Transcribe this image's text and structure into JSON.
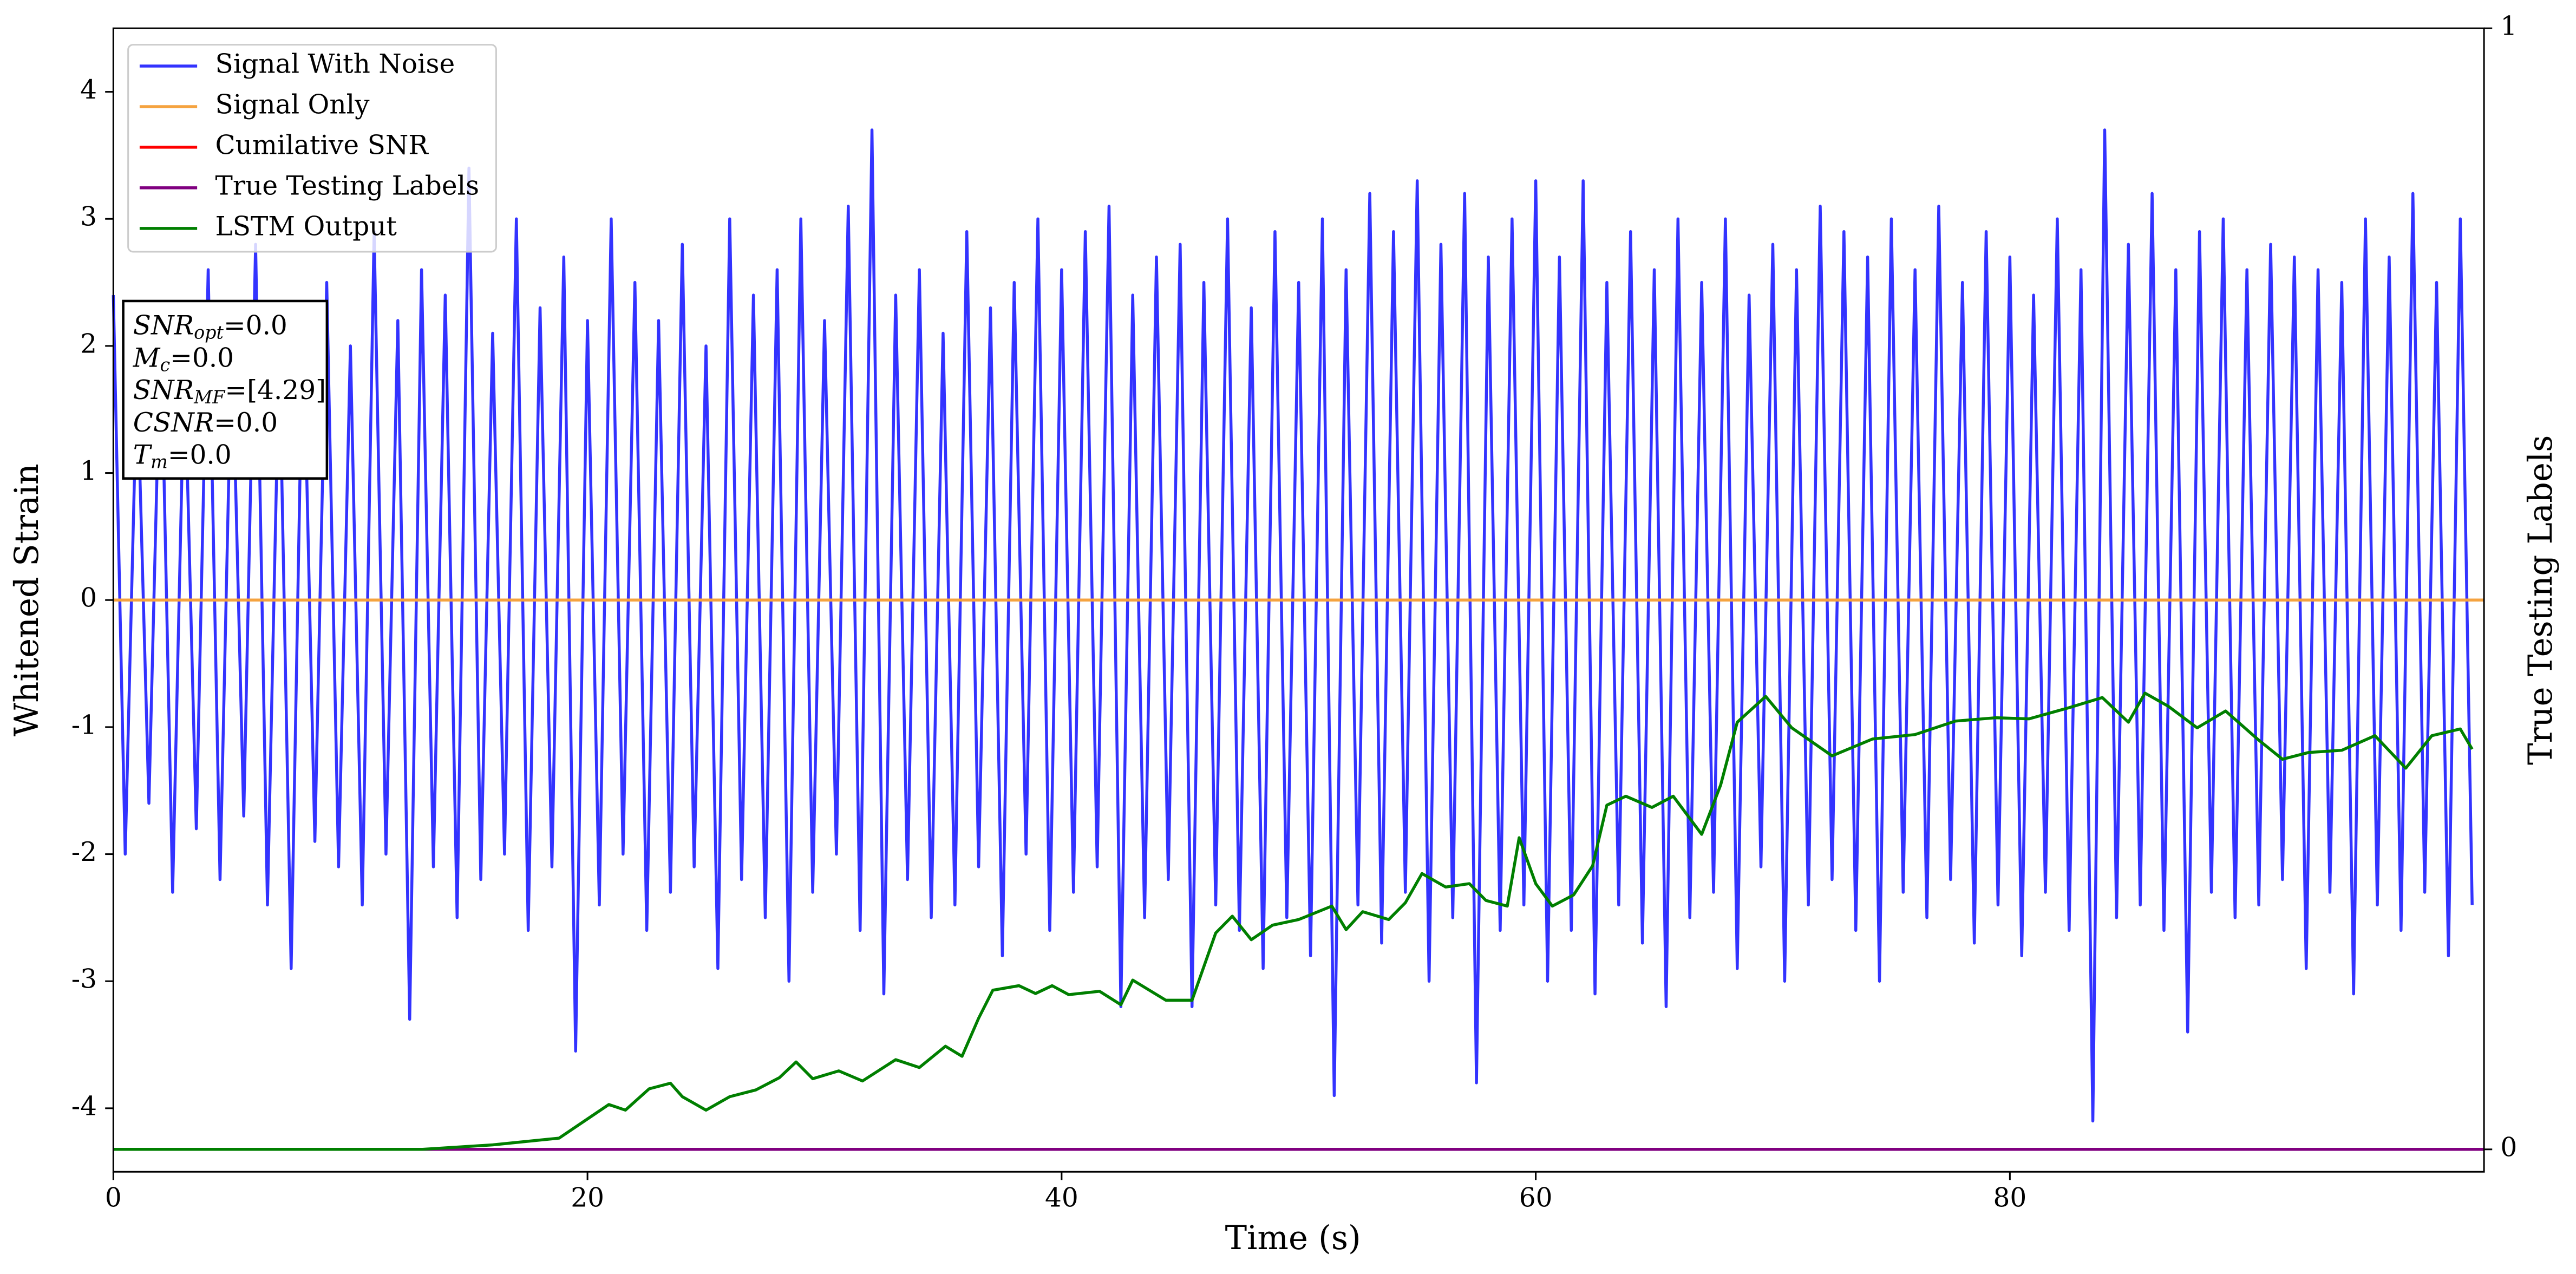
{
  "chart_data": {
    "type": "line",
    "xlabel": "Time (s)",
    "ylabel": "Whitened Strain",
    "y2label": "True Testing Labels",
    "xlim": [
      0,
      100
    ],
    "xticks": [
      0,
      20,
      40,
      60,
      80
    ],
    "ylim": [
      -4.5,
      4.5
    ],
    "yticks": [
      -4,
      -3,
      -2,
      -1,
      0,
      1,
      2,
      3,
      4
    ],
    "y2lim": [
      -0.02,
      1
    ],
    "y2ticks": [
      0,
      1
    ],
    "legend": "upper left",
    "annotation": [
      {
        "main": "SNR",
        "sub": "opt",
        "rest": "=0.0"
      },
      {
        "main": "M",
        "sub": "c",
        "rest": "=0.0"
      },
      {
        "main": "SNR",
        "sub": "MF",
        "rest": "=[4.29]"
      },
      {
        "main": "CSNR",
        "rest": "=0.0"
      },
      {
        "main": "T",
        "sub": "m",
        "rest": "=0.0"
      }
    ],
    "series": [
      {
        "name": "Signal With Noise",
        "color": "#3333ff",
        "x": [
          0,
          0.5,
          1,
          1.5,
          2,
          2.5,
          3,
          3.5,
          4,
          4.5,
          5,
          5.5,
          6,
          6.5,
          7,
          7.5,
          8,
          8.5,
          9,
          9.5,
          10,
          10.5,
          11,
          11.5,
          12,
          12.5,
          13,
          13.5,
          14,
          14.5,
          15,
          15.5,
          16,
          16.5,
          17,
          17.5,
          18,
          18.5,
          19,
          19.5,
          20,
          20.5,
          21,
          21.5,
          22,
          22.5,
          23,
          23.5,
          24,
          24.5,
          25,
          25.5,
          26,
          26.5,
          27,
          27.5,
          28,
          28.5,
          29,
          29.5,
          30,
          30.5,
          31,
          31.5,
          32,
          32.5,
          33,
          33.5,
          34,
          34.5,
          35,
          35.5,
          36,
          36.5,
          37,
          37.5,
          38,
          38.5,
          39,
          39.5,
          40,
          40.5,
          41,
          41.5,
          42,
          42.5,
          43,
          43.5,
          44,
          44.5,
          45,
          45.5,
          46,
          46.5,
          47,
          47.5,
          48,
          48.5,
          49,
          49.5,
          50,
          50.5,
          51,
          51.5,
          52,
          52.5,
          53,
          53.5,
          54,
          54.5,
          55,
          55.5,
          56,
          56.5,
          57,
          57.5,
          58,
          58.5,
          59,
          59.5,
          60,
          60.5,
          61,
          61.5,
          62,
          62.5,
          63,
          63.5,
          64,
          64.5,
          65,
          65.5,
          66,
          66.5,
          67,
          67.5,
          68,
          68.5,
          69,
          69.5,
          70,
          70.5,
          71,
          71.5,
          72,
          72.5,
          73,
          73.5,
          74,
          74.5,
          75,
          75.5,
          76,
          76.5,
          77,
          77.5,
          78,
          78.5,
          79,
          79.5,
          80,
          80.5,
          81,
          81.5,
          82,
          82.5,
          83,
          83.5,
          84,
          84.5,
          85,
          85.5,
          86,
          86.5,
          87,
          87.5,
          88,
          88.5,
          89,
          89.5,
          90,
          90.5,
          91,
          91.5,
          92,
          92.5,
          93,
          93.5,
          94,
          94.5,
          95,
          95.5,
          96,
          96.5,
          97,
          97.5,
          98,
          98.5,
          99,
          99.5
        ],
        "values": [
          2.4,
          -2.0,
          1.8,
          -1.6,
          2.2,
          -2.3,
          1.9,
          -1.8,
          2.6,
          -2.2,
          2.1,
          -1.7,
          2.8,
          -2.4,
          2.0,
          -2.9,
          2.3,
          -1.9,
          2.5,
          -2.1,
          2.0,
          -2.4,
          2.9,
          -2.0,
          2.2,
          -3.3,
          2.6,
          -2.1,
          2.4,
          -2.5,
          3.4,
          -2.2,
          2.1,
          -2.0,
          3.0,
          -2.6,
          2.3,
          -2.1,
          2.7,
          -3.55,
          2.2,
          -2.4,
          3.0,
          -2.0,
          2.5,
          -2.6,
          2.2,
          -2.3,
          2.8,
          -2.1,
          2.0,
          -2.9,
          3.0,
          -2.2,
          2.4,
          -2.5,
          2.6,
          -3.0,
          3.0,
          -2.3,
          2.2,
          -2.0,
          3.1,
          -2.6,
          3.7,
          -3.1,
          2.4,
          -2.2,
          2.6,
          -2.5,
          2.1,
          -2.4,
          2.9,
          -2.1,
          2.3,
          -2.8,
          2.5,
          -2.0,
          3.0,
          -2.6,
          2.6,
          -2.3,
          2.9,
          -2.1,
          3.1,
          -3.2,
          2.4,
          -2.5,
          2.7,
          -2.2,
          2.8,
          -3.2,
          2.5,
          -2.4,
          3.0,
          -2.6,
          2.3,
          -2.9,
          2.9,
          -2.5,
          2.5,
          -2.8,
          3.0,
          -3.9,
          2.6,
          -2.4,
          3.2,
          -2.7,
          2.9,
          -2.3,
          3.3,
          -3.0,
          2.8,
          -2.5,
          3.2,
          -3.8,
          2.7,
          -2.6,
          3.0,
          -2.4,
          3.3,
          -3.0,
          2.7,
          -2.6,
          3.3,
          -3.1,
          2.5,
          -2.4,
          2.9,
          -2.7,
          2.6,
          -3.2,
          3.0,
          -2.5,
          2.5,
          -2.3,
          3.0,
          -2.9,
          2.4,
          -2.1,
          2.8,
          -3.0,
          2.6,
          -2.4,
          3.1,
          -2.2,
          2.9,
          -2.6,
          2.7,
          -3.0,
          3.0,
          -2.3,
          2.6,
          -2.5,
          3.1,
          -2.2,
          2.5,
          -2.7,
          2.9,
          -2.4,
          2.7,
          -2.8,
          2.4,
          -2.3,
          3.0,
          -2.6,
          2.6,
          -4.1,
          3.7,
          -2.5,
          2.8,
          -2.4,
          3.2,
          -2.6,
          2.6,
          -3.4,
          2.9,
          -2.3,
          3.0,
          -2.5,
          2.6,
          -2.4,
          2.8,
          -2.2,
          2.7,
          -2.9,
          2.6,
          -2.3,
          2.5,
          -3.1,
          3.0,
          -2.4,
          2.7,
          -2.6,
          3.2,
          -2.3,
          2.5,
          -2.8,
          3.0,
          -2.4
        ]
      },
      {
        "name": "Signal Only",
        "color": "#f5a340",
        "x": [
          0,
          100
        ],
        "values": [
          0,
          0
        ]
      },
      {
        "name": "Cumilative SNR",
        "color": "#ff0000",
        "axis": "y2",
        "x": [
          0,
          100
        ],
        "values": [
          0,
          0
        ]
      },
      {
        "name": "True Testing Labels",
        "color": "#800080",
        "axis": "y2",
        "x": [
          0,
          100
        ],
        "values": [
          0,
          0
        ]
      },
      {
        "name": "LSTM Output",
        "color": "#007f00",
        "axis": "y2",
        "x": [
          0,
          13,
          16,
          18.8,
          20.2,
          20.9,
          21.6,
          22.6,
          23.5,
          24,
          25,
          26,
          27.1,
          28.1,
          28.8,
          29.5,
          30.6,
          31.6,
          33,
          34,
          35.1,
          35.8,
          36.5,
          37.1,
          38.2,
          38.9,
          39.6,
          40.3,
          41.6,
          42.5,
          43,
          43.7,
          44.4,
          45.5,
          46.5,
          47.2,
          48,
          48.9,
          50,
          51.4,
          52,
          52.7,
          53.8,
          54.5,
          55.2,
          56.2,
          57.2,
          57.9,
          58.8,
          59.3,
          60,
          60.7,
          61.6,
          62.4,
          63,
          63.8,
          64.9,
          65.8,
          67,
          67.8,
          68.5,
          69.7,
          70.8,
          72.5,
          74.2,
          76,
          77.7,
          79.4,
          80.8,
          82.5,
          83.9,
          85,
          85.7,
          86.7,
          87.9,
          89.1,
          90.5,
          91.5,
          92.6,
          94,
          95.4,
          96.7,
          97.8,
          99,
          99.5
        ],
        "values": [
          0,
          0,
          0.004,
          0.01,
          0.03,
          0.04,
          0.035,
          0.054,
          0.059,
          0.047,
          0.035,
          0.047,
          0.053,
          0.064,
          0.078,
          0.063,
          0.07,
          0.061,
          0.08,
          0.073,
          0.092,
          0.083,
          0.117,
          0.142,
          0.146,
          0.139,
          0.146,
          0.138,
          0.141,
          0.129,
          0.151,
          0.142,
          0.133,
          0.133,
          0.193,
          0.208,
          0.187,
          0.2,
          0.205,
          0.217,
          0.196,
          0.212,
          0.205,
          0.22,
          0.246,
          0.234,
          0.237,
          0.222,
          0.217,
          0.278,
          0.237,
          0.217,
          0.227,
          0.253,
          0.307,
          0.315,
          0.305,
          0.315,
          0.281,
          0.325,
          0.381,
          0.404,
          0.376,
          0.351,
          0.366,
          0.37,
          0.382,
          0.385,
          0.384,
          0.394,
          0.403,
          0.381,
          0.407,
          0.395,
          0.376,
          0.391,
          0.365,
          0.348,
          0.354,
          0.356,
          0.369,
          0.34,
          0.369,
          0.375,
          0.357
        ]
      }
    ]
  }
}
